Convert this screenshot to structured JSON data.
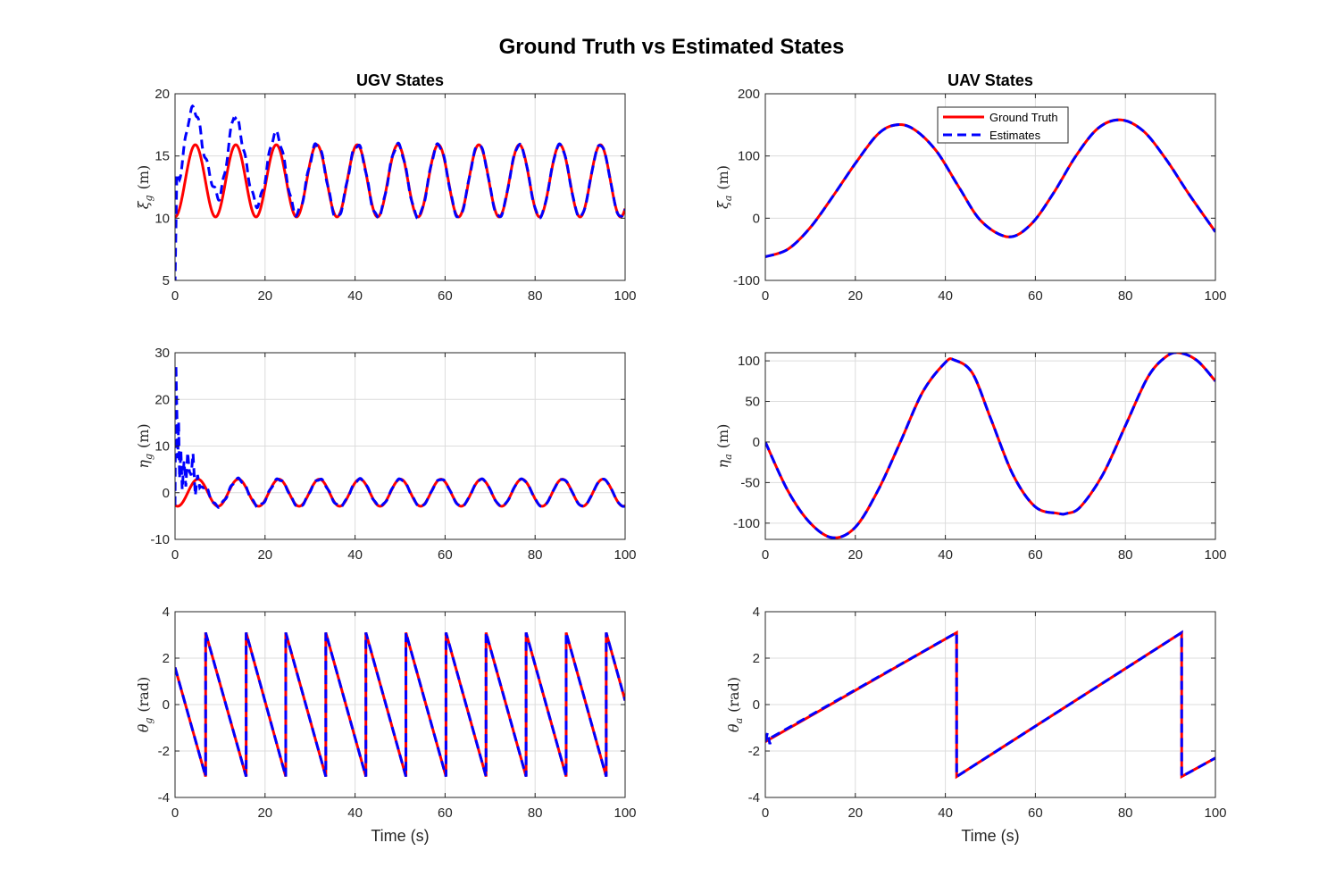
{
  "figure": {
    "title": "Ground Truth vs Estimated States"
  },
  "legend": {
    "placement": "top-center of UAV ξ panel",
    "entries": [
      "Ground Truth",
      "Estimates"
    ]
  },
  "colors": {
    "ground_truth": "#ff0000",
    "estimates": "#0000ff",
    "grid": "#dcdcdc",
    "axis": "#262626"
  },
  "chart_data": [
    {
      "id": "ugv_xi",
      "type": "line",
      "title": "UGV States",
      "xlabel": "",
      "ylabel": {
        "sym": "ξ",
        "sub": "g",
        "unit": "(m)"
      },
      "xlim": [
        0,
        100
      ],
      "ylim": [
        5,
        20
      ],
      "xticks": [
        0,
        20,
        40,
        60,
        80,
        100
      ],
      "yticks": [
        5,
        10,
        15,
        20
      ],
      "grid": true,
      "series": [
        {
          "name": "Ground Truth",
          "kind": "sine",
          "offset": 13.0,
          "amp": 2.9,
          "period": 9.0,
          "phase": 0.0
        },
        {
          "name": "Estimates",
          "kind": "sine_noisy",
          "offset": 13.0,
          "amp": 2.9,
          "period": 9.0,
          "phase": 0.0,
          "x": [
            0,
            0.4,
            1,
            2,
            3,
            4,
            5,
            6,
            7,
            8,
            9,
            10,
            11,
            12,
            13,
            14,
            15,
            16,
            17,
            18,
            19,
            20,
            22,
            24,
            26,
            28,
            30
          ],
          "extra": [
            -5.5,
            3.0,
            2.5,
            3.0,
            3.5,
            3.0,
            2.5,
            1.5,
            2.0,
            2.5,
            2.0,
            1.0,
            1.0,
            1.5,
            2.5,
            2.0,
            1.5,
            1.5,
            1.5,
            1.0,
            0.8,
            0.6,
            1.0,
            0.6,
            0.3,
            0.2,
            0.0
          ]
        }
      ]
    },
    {
      "id": "uav_xi",
      "type": "line",
      "title": "UAV States",
      "xlabel": "",
      "ylabel": {
        "sym": "ξ",
        "sub": "a",
        "unit": "(m)"
      },
      "xlim": [
        0,
        100
      ],
      "ylim": [
        -100,
        200
      ],
      "xticks": [
        0,
        20,
        40,
        60,
        80,
        100
      ],
      "yticks": [
        -100,
        0,
        100,
        200
      ],
      "grid": true,
      "series": [
        {
          "name": "Ground Truth",
          "kind": "points",
          "x": [
            0,
            5,
            10,
            15,
            20,
            25,
            29,
            33,
            38,
            43,
            48,
            54,
            59,
            64,
            69,
            74,
            79,
            84,
            89,
            94,
            100
          ],
          "y": [
            -62,
            -50,
            -15,
            35,
            88,
            135,
            150,
            143,
            108,
            50,
            -5,
            -30,
            -10,
            40,
            100,
            145,
            158,
            140,
            95,
            40,
            -22
          ]
        },
        {
          "name": "Estimates",
          "kind": "points",
          "x": [
            0,
            5,
            10,
            15,
            20,
            25,
            29,
            33,
            38,
            43,
            48,
            54,
            59,
            64,
            69,
            74,
            79,
            84,
            89,
            94,
            100
          ],
          "y": [
            -62,
            -50,
            -15,
            35,
            88,
            135,
            150,
            143,
            108,
            50,
            -5,
            -30,
            -10,
            40,
            100,
            145,
            158,
            140,
            95,
            40,
            -22
          ]
        }
      ]
    },
    {
      "id": "ugv_eta",
      "type": "line",
      "title": "",
      "xlabel": "",
      "ylabel": {
        "sym": "η",
        "sub": "g",
        "unit": "(m)"
      },
      "xlim": [
        0,
        100
      ],
      "ylim": [
        -10,
        30
      ],
      "xticks": [
        0,
        20,
        40,
        60,
        80,
        100
      ],
      "yticks": [
        -10,
        0,
        10,
        20,
        30
      ],
      "grid": true,
      "series": [
        {
          "name": "Ground Truth",
          "kind": "sine",
          "offset": 0.0,
          "amp": 2.9,
          "period": 9.0,
          "phase": -0.4
        },
        {
          "name": "Estimates",
          "kind": "sine_noisy",
          "offset": 0.0,
          "amp": 2.9,
          "period": 9.0,
          "phase": -0.4,
          "x": [
            0,
            0.2,
            0.4,
            0.6,
            0.8,
            1.0,
            1.3,
            1.6,
            2.0,
            2.4,
            2.8,
            3.2,
            3.6,
            4.0,
            4.5,
            5.0,
            5.5,
            6.0,
            7.0,
            8.0,
            9.0
          ],
          "extra": [
            0,
            30,
            20,
            10,
            18,
            6,
            12,
            3,
            8,
            2,
            9,
            4,
            2,
            6,
            -3,
            1,
            -2,
            -1,
            0.5,
            0,
            0
          ]
        }
      ]
    },
    {
      "id": "uav_eta",
      "type": "line",
      "title": "",
      "xlabel": "",
      "ylabel": {
        "sym": "η",
        "sub": "a",
        "unit": "(m)"
      },
      "xlim": [
        0,
        100
      ],
      "ylim": [
        -120,
        110
      ],
      "xticks": [
        0,
        20,
        40,
        60,
        80,
        100
      ],
      "yticks": [
        -100,
        -50,
        0,
        50,
        100
      ],
      "grid": true,
      "series": [
        {
          "name": "Ground Truth",
          "kind": "points",
          "x": [
            0,
            5,
            10,
            15,
            20,
            25,
            30,
            35,
            40,
            42,
            46,
            50,
            55,
            60,
            65,
            67,
            70,
            75,
            80,
            85,
            89,
            92,
            96,
            100
          ],
          "y": [
            0,
            -60,
            -100,
            -118,
            -105,
            -60,
            0,
            62,
            98,
            101,
            85,
            30,
            -40,
            -80,
            -88,
            -88,
            -80,
            -40,
            20,
            80,
            105,
            110,
            100,
            75
          ]
        },
        {
          "name": "Estimates",
          "kind": "points",
          "x": [
            0,
            5,
            10,
            15,
            20,
            25,
            30,
            35,
            40,
            42,
            46,
            50,
            55,
            60,
            65,
            67,
            70,
            75,
            80,
            85,
            89,
            92,
            96,
            100
          ],
          "y": [
            0,
            -60,
            -100,
            -118,
            -105,
            -60,
            0,
            62,
            98,
            101,
            85,
            30,
            -40,
            -80,
            -88,
            -88,
            -80,
            -40,
            20,
            80,
            105,
            110,
            100,
            75
          ]
        }
      ]
    },
    {
      "id": "ugv_theta",
      "type": "line",
      "title": "",
      "xlabel": "Time (s)",
      "ylabel": {
        "sym": "θ",
        "sub": "g",
        "unit": "(rad)"
      },
      "xlim": [
        0,
        100
      ],
      "ylim": [
        -4,
        4
      ],
      "xticks": [
        0,
        20,
        40,
        60,
        80,
        100
      ],
      "yticks": [
        -4,
        -2,
        0,
        2,
        4
      ],
      "grid": true,
      "series": [
        {
          "name": "Ground Truth",
          "kind": "sawdown",
          "x0": 0,
          "y0": 1.6,
          "wraps": [
            6.8,
            15.8,
            24.6,
            33.5,
            42.4,
            51.3,
            60.2,
            69.1,
            78.0,
            86.9,
            95.8
          ]
        },
        {
          "name": "Estimates",
          "kind": "sawdown",
          "x0": 0,
          "y0": 1.6,
          "wraps": [
            6.8,
            15.8,
            24.6,
            33.5,
            42.4,
            51.3,
            60.2,
            69.1,
            78.0,
            86.9,
            95.8
          ]
        }
      ]
    },
    {
      "id": "uav_theta",
      "type": "line",
      "title": "",
      "xlabel": "Time (s)",
      "ylabel": {
        "sym": "θ",
        "sub": "a",
        "unit": "(rad)"
      },
      "xlim": [
        0,
        100
      ],
      "ylim": [
        -4,
        4
      ],
      "xticks": [
        0,
        20,
        40,
        60,
        80,
        100
      ],
      "yticks": [
        -4,
        -2,
        0,
        2,
        4
      ],
      "grid": true,
      "series": [
        {
          "name": "Ground Truth",
          "kind": "points",
          "x": [
            0,
            42.5,
            42.51,
            92.5,
            92.51,
            100
          ],
          "y": [
            -1.6,
            3.1,
            -3.1,
            3.1,
            -3.1,
            -2.3
          ]
        },
        {
          "name": "Estimates",
          "kind": "points",
          "x": [
            0,
            0.5,
            1.0,
            1.5,
            42.5,
            42.51,
            92.5,
            92.51,
            100
          ],
          "y": [
            -1.6,
            -1.2,
            -1.7,
            -1.4,
            3.1,
            -3.1,
            3.1,
            -3.1,
            -2.3
          ]
        }
      ]
    }
  ]
}
